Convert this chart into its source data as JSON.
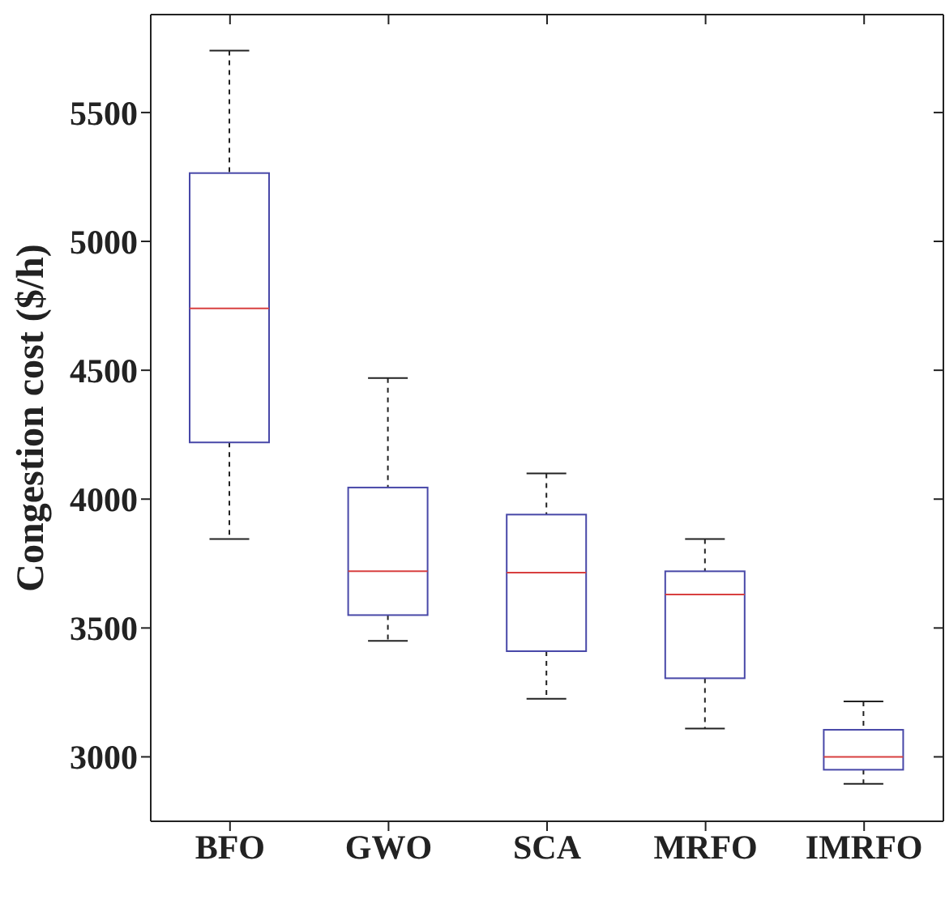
{
  "chart_data": {
    "type": "box",
    "ylabel": "Congestion cost ($/h)",
    "categories": [
      "BFO",
      "GWO",
      "SCA",
      "MRFO",
      "IMRFO"
    ],
    "color": "#4848a8",
    "boxes": [
      {
        "low": 3845,
        "q1": 4220,
        "median": 4740,
        "q3": 5265,
        "high": 5740
      },
      {
        "low": 3450,
        "q1": 3550,
        "median": 3720,
        "q3": 4045,
        "high": 4470
      },
      {
        "low": 3225,
        "q1": 3410,
        "median": 3715,
        "q3": 3940,
        "high": 4100
      },
      {
        "low": 3110,
        "q1": 3305,
        "median": 3630,
        "q3": 3720,
        "high": 3845
      },
      {
        "low": 2895,
        "q1": 2950,
        "median": 3000,
        "q3": 3105,
        "high": 3215
      }
    ],
    "ylim": [
      2750,
      5880
    ],
    "yticks": [
      3000,
      3500,
      4000,
      4500,
      5000,
      5500
    ],
    "grid": false
  }
}
